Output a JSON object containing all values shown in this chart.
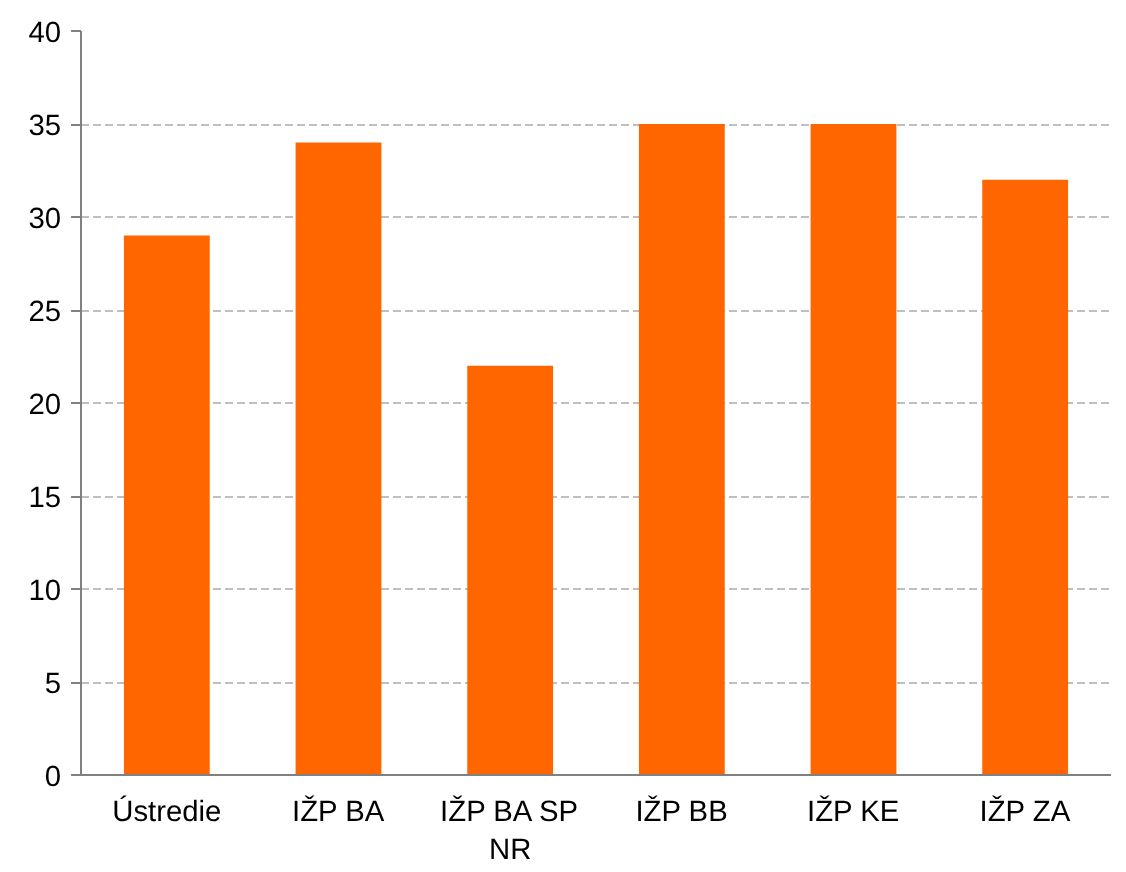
{
  "chart_data": {
    "type": "bar",
    "categories": [
      "Ústredie",
      "IŽP BA",
      "IŽP BA SP NR",
      "IŽP BB",
      "IŽP KE",
      "IŽP ZA"
    ],
    "values": [
      29,
      34,
      22,
      35,
      35,
      32
    ],
    "color": "#ff6600",
    "ylim": [
      0,
      40
    ],
    "yticks": [
      0,
      5,
      10,
      15,
      20,
      25,
      30,
      35,
      40
    ],
    "grid": "y"
  }
}
